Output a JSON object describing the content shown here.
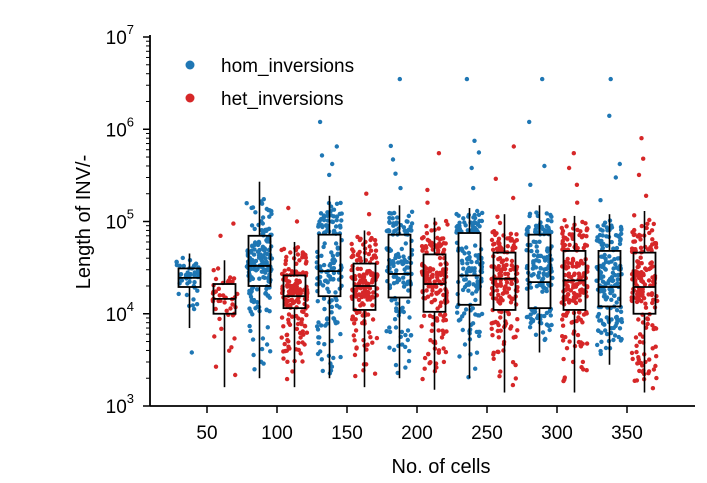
{
  "chart_data": {
    "type": "box_strip",
    "xlabel": "No. of cells",
    "ylabel": "Length of INV/-",
    "yscale": "log",
    "ylim": [
      1000,
      10000000
    ],
    "y_ticks": [
      {
        "value": 1000,
        "base": "10",
        "exp": "3"
      },
      {
        "value": 10000,
        "base": "10",
        "exp": "4"
      },
      {
        "value": 100000,
        "base": "10",
        "exp": "5"
      },
      {
        "value": 1000000,
        "base": "10",
        "exp": "6"
      },
      {
        "value": 10000000,
        "base": "10",
        "exp": "7"
      }
    ],
    "categories": [
      "50",
      "100",
      "150",
      "200",
      "250",
      "300",
      "350"
    ],
    "legend_position": "top-left",
    "grid": false,
    "series": [
      {
        "name": "hom_inversions",
        "color": "#1f77b4",
        "points_per_group": [
          45,
          170,
          150,
          140,
          150,
          155,
          165
        ],
        "boxes": [
          {
            "min": 7000,
            "q1": 19500,
            "median": 24500,
            "q3": 31000,
            "max": 45000,
            "outliers": [
              3800
            ]
          },
          {
            "min": 2000,
            "q1": 20000,
            "median": 33000,
            "q3": 70000,
            "max": 270000,
            "outliers": []
          },
          {
            "min": 2000,
            "q1": 15500,
            "median": 29000,
            "q3": 72000,
            "max": 190000,
            "outliers": [
              320000,
              420000,
              520000,
              650000,
              1200000
            ]
          },
          {
            "min": 2000,
            "q1": 15000,
            "median": 27000,
            "q3": 72000,
            "max": 150000,
            "outliers": [
              230000,
              330000,
              470000,
              660000,
              3500000
            ]
          },
          {
            "min": 2000,
            "q1": 12500,
            "median": 26000,
            "q3": 75000,
            "max": 140000,
            "outliers": [
              230000,
              380000,
              560000,
              750000,
              3500000
            ]
          },
          {
            "min": 3800,
            "q1": 11500,
            "median": 22000,
            "q3": 72000,
            "max": 150000,
            "outliers": [
              250000,
              400000,
              1200000,
              3500000
            ]
          },
          {
            "min": 2800,
            "q1": 12000,
            "median": 19500,
            "q3": 48000,
            "max": 120000,
            "outliers": [
              170000,
              300000,
              420000,
              1400000,
              3500000
            ]
          }
        ]
      },
      {
        "name": "het_inversions",
        "color": "#d62728",
        "points_per_group": [
          45,
          170,
          160,
          170,
          170,
          175,
          175
        ],
        "boxes": [
          {
            "min": 1600,
            "q1": 10000,
            "median": 14500,
            "q3": 21000,
            "max": 38000,
            "outliers": [
              70000,
              95000
            ]
          },
          {
            "min": 1600,
            "q1": 11500,
            "median": 15500,
            "q3": 26000,
            "max": 60000,
            "outliers": [
              100000,
              140000
            ]
          },
          {
            "min": 1600,
            "q1": 11000,
            "median": 20000,
            "q3": 35000,
            "max": 80000,
            "outliers": [
              120000,
              200000
            ]
          },
          {
            "min": 1500,
            "q1": 10500,
            "median": 21000,
            "q3": 44000,
            "max": 110000,
            "outliers": [
              160000,
              220000,
              550000
            ]
          },
          {
            "min": 1400,
            "q1": 11000,
            "median": 24000,
            "q3": 46000,
            "max": 120000,
            "outliers": [
              180000,
              290000,
              650000
            ]
          },
          {
            "min": 1400,
            "q1": 11000,
            "median": 23000,
            "q3": 48000,
            "max": 115000,
            "outliers": [
              160000,
              250000,
              380000,
              550000
            ]
          },
          {
            "min": 1400,
            "q1": 10000,
            "median": 19500,
            "q3": 46000,
            "max": 130000,
            "outliers": [
              190000,
              320000,
              480000,
              800000
            ]
          }
        ]
      }
    ]
  }
}
